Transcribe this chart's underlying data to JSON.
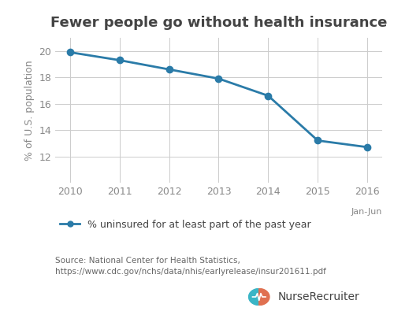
{
  "title": "Fewer people go without health insurance",
  "years": [
    2010,
    2011,
    2012,
    2013,
    2014,
    2015,
    2016
  ],
  "values": [
    19.9,
    19.3,
    18.6,
    17.9,
    16.6,
    13.2,
    12.7
  ],
  "ylabel": "% of U.S. population",
  "ylim": [
    10,
    21
  ],
  "yticks": [
    12,
    14,
    16,
    18,
    20
  ],
  "line_color": "#2a7ba8",
  "marker_color": "#2a7ba8",
  "grid_color": "#cccccc",
  "background_color": "#ffffff",
  "legend_label": "% uninsured for at least part of the past year",
  "jan_jun_label": "Jan-Jun",
  "source_text": "Source: National Center for Health Statistics,\nhttps://www.cdc.gov/nchs/data/nhis/earlyrelease/insur201611.pdf",
  "title_fontsize": 13,
  "label_fontsize": 9,
  "tick_fontsize": 9,
  "source_fontsize": 7.5,
  "legend_fontsize": 9,
  "title_color": "#444444",
  "tick_color": "#888888",
  "source_color": "#666666",
  "nurserecruiter_text": "NurseRecruiter",
  "nurserecruiter_fontsize": 10,
  "logo_teal": "#3ab5c6",
  "logo_orange": "#e07050"
}
